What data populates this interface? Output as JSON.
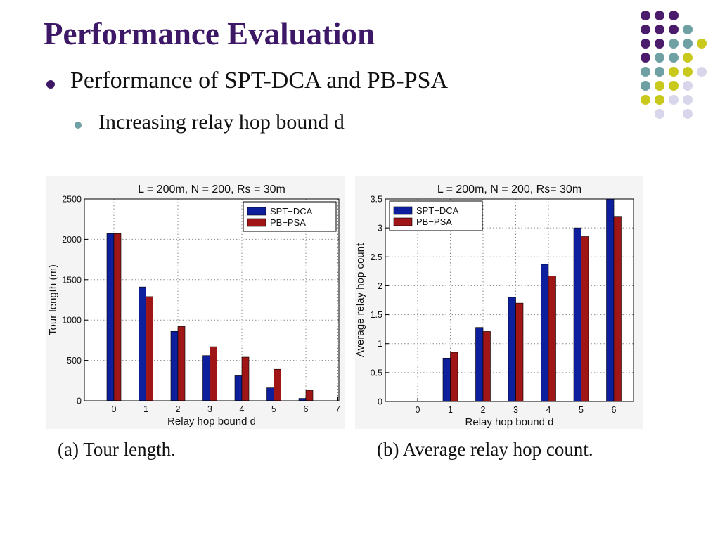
{
  "slide": {
    "title": "Performance Evaluation",
    "bullet1": "Performance of SPT-DCA and PB-PSA",
    "bullet2": "Increasing relay hop bound d"
  },
  "colors": {
    "title": "#3d1866",
    "spt": "#0d1f9c",
    "pb": "#a01616",
    "deco_purple": "#4a1c6b",
    "deco_teal": "#6fa0a4",
    "deco_yellow": "#c9c81c",
    "deco_lavender": "#d8d6ea"
  },
  "captions": {
    "a": "(a) Tour length.",
    "b": "(b) Average relay hop count."
  },
  "chart_data": [
    {
      "type": "bar",
      "title": "L = 200m, N = 200, Rs = 30m",
      "xlabel": "Relay hop bound d",
      "ylabel": "Tour length (m)",
      "categories": [
        "0",
        "1",
        "2",
        "3",
        "4",
        "5",
        "6"
      ],
      "xticks": [
        "0",
        "1",
        "2",
        "3",
        "4",
        "5",
        "6",
        "7"
      ],
      "yticks": [
        "0",
        "500",
        "1000",
        "1500",
        "2000",
        "2500"
      ],
      "ylim": [
        0,
        2500
      ],
      "grid": true,
      "legend_position": "top-right",
      "series": [
        {
          "name": "SPT−DCA",
          "values": [
            2070,
            1410,
            860,
            560,
            310,
            160,
            30
          ]
        },
        {
          "name": "PB−PSA",
          "values": [
            2070,
            1290,
            920,
            670,
            540,
            390,
            130
          ]
        }
      ]
    },
    {
      "type": "bar",
      "title": "L = 200m, N = 200, Rs= 30m",
      "xlabel": "Relay hop bound d",
      "ylabel": "Average relay hop count",
      "categories": [
        "0",
        "1",
        "2",
        "3",
        "4",
        "5",
        "6"
      ],
      "xticks": [
        "0",
        "1",
        "2",
        "3",
        "4",
        "5",
        "6"
      ],
      "yticks": [
        "0",
        "0.5",
        "1",
        "1.5",
        "2",
        "2.5",
        "3",
        "3.5"
      ],
      "ylim": [
        0,
        3.5
      ],
      "grid": true,
      "legend_position": "top-left",
      "series": [
        {
          "name": "SPT−DCA",
          "values": [
            0,
            0.75,
            1.28,
            1.8,
            2.37,
            3.0,
            3.5
          ]
        },
        {
          "name": "PB−PSA",
          "values": [
            0,
            0.85,
            1.21,
            1.7,
            2.17,
            2.85,
            3.2
          ]
        }
      ]
    }
  ]
}
